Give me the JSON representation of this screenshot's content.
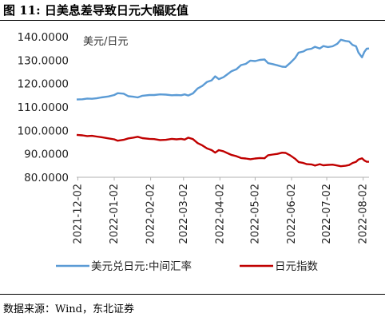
{
  "header": {
    "title": "图  11:  日美息差导致日元大幅贬值"
  },
  "footer": {
    "source": "数据来源：Wind，东北证券"
  },
  "chart_data": {
    "type": "line",
    "unit_label": "美元/日元",
    "ylim": [
      80,
      140
    ],
    "yticks": [
      "140.0000",
      "130.0000",
      "120.0000",
      "110.0000",
      "100.0000",
      "90.0000",
      "80.0000"
    ],
    "ytick_values": [
      140,
      130,
      120,
      110,
      100,
      90,
      80
    ],
    "xticks": [
      "2021-12-02",
      "2022-01-02",
      "2022-02-02",
      "2022-03-02",
      "2022-04-02",
      "2022-05-02",
      "2022-06-02",
      "2022-07-02",
      "2022-08-02"
    ],
    "xlim": [
      "2021-12-01",
      "2022-08-07"
    ],
    "grid": false,
    "legend_position": "bottom",
    "series": [
      {
        "name": "美元兑日元:中间汇率",
        "color": "#5B9BD5",
        "points": [
          [
            "2021-12-01",
            113.2
          ],
          [
            "2021-12-06",
            113.3
          ],
          [
            "2021-12-10",
            113.6
          ],
          [
            "2021-12-14",
            113.5
          ],
          [
            "2021-12-18",
            113.7
          ],
          [
            "2021-12-22",
            114.1
          ],
          [
            "2021-12-28",
            114.5
          ],
          [
            "2022-01-02",
            115.1
          ],
          [
            "2022-01-05",
            115.9
          ],
          [
            "2022-01-10",
            115.7
          ],
          [
            "2022-01-14",
            114.6
          ],
          [
            "2022-01-18",
            114.4
          ],
          [
            "2022-01-22",
            114.1
          ],
          [
            "2022-01-26",
            114.8
          ],
          [
            "2022-02-01",
            115.1
          ],
          [
            "2022-02-05",
            115.1
          ],
          [
            "2022-02-10",
            115.4
          ],
          [
            "2022-02-15",
            115.3
          ],
          [
            "2022-02-20",
            115.0
          ],
          [
            "2022-02-24",
            115.1
          ],
          [
            "2022-02-28",
            115.0
          ],
          [
            "2022-03-03",
            115.4
          ],
          [
            "2022-03-06",
            114.9
          ],
          [
            "2022-03-10",
            115.8
          ],
          [
            "2022-03-14",
            117.9
          ],
          [
            "2022-03-18",
            119.0
          ],
          [
            "2022-03-22",
            120.7
          ],
          [
            "2022-03-26",
            121.4
          ],
          [
            "2022-03-29",
            123.1
          ],
          [
            "2022-04-01",
            121.9
          ],
          [
            "2022-04-05",
            122.7
          ],
          [
            "2022-04-08",
            123.8
          ],
          [
            "2022-04-12",
            125.3
          ],
          [
            "2022-04-16",
            126.1
          ],
          [
            "2022-04-20",
            127.9
          ],
          [
            "2022-04-24",
            128.4
          ],
          [
            "2022-04-28",
            129.8
          ],
          [
            "2022-05-02",
            129.6
          ],
          [
            "2022-05-06",
            130.1
          ],
          [
            "2022-05-10",
            130.3
          ],
          [
            "2022-05-13",
            128.7
          ],
          [
            "2022-05-17",
            128.3
          ],
          [
            "2022-05-21",
            127.8
          ],
          [
            "2022-05-25",
            127.2
          ],
          [
            "2022-05-28",
            127.1
          ],
          [
            "2022-06-01",
            128.9
          ],
          [
            "2022-06-05",
            130.9
          ],
          [
            "2022-06-08",
            133.2
          ],
          [
            "2022-06-12",
            133.7
          ],
          [
            "2022-06-15",
            134.5
          ],
          [
            "2022-06-19",
            134.9
          ],
          [
            "2022-06-22",
            135.7
          ],
          [
            "2022-06-26",
            135.0
          ],
          [
            "2022-06-29",
            136.0
          ],
          [
            "2022-07-03",
            135.6
          ],
          [
            "2022-07-07",
            135.9
          ],
          [
            "2022-07-11",
            137.0
          ],
          [
            "2022-07-14",
            138.7
          ],
          [
            "2022-07-18",
            138.2
          ],
          [
            "2022-07-21",
            138.0
          ],
          [
            "2022-07-24",
            136.5
          ],
          [
            "2022-07-27",
            135.9
          ],
          [
            "2022-07-29",
            133.2
          ],
          [
            "2022-08-01",
            131.2
          ],
          [
            "2022-08-03",
            133.5
          ],
          [
            "2022-08-05",
            134.9
          ],
          [
            "2022-08-07",
            135.0
          ]
        ]
      },
      {
        "name": "日元指数",
        "color": "#C00000",
        "points": [
          [
            "2021-12-01",
            98.1
          ],
          [
            "2021-12-06",
            97.9
          ],
          [
            "2021-12-10",
            97.6
          ],
          [
            "2021-12-14",
            97.7
          ],
          [
            "2021-12-18",
            97.4
          ],
          [
            "2021-12-22",
            97.1
          ],
          [
            "2021-12-28",
            96.6
          ],
          [
            "2022-01-02",
            96.2
          ],
          [
            "2022-01-05",
            95.6
          ],
          [
            "2022-01-10",
            96.0
          ],
          [
            "2022-01-14",
            96.6
          ],
          [
            "2022-01-18",
            96.9
          ],
          [
            "2022-01-22",
            97.3
          ],
          [
            "2022-01-26",
            96.7
          ],
          [
            "2022-02-01",
            96.4
          ],
          [
            "2022-02-05",
            96.3
          ],
          [
            "2022-02-10",
            95.9
          ],
          [
            "2022-02-15",
            96.0
          ],
          [
            "2022-02-20",
            96.4
          ],
          [
            "2022-02-24",
            96.2
          ],
          [
            "2022-02-28",
            96.4
          ],
          [
            "2022-03-03",
            96.1
          ],
          [
            "2022-03-06",
            96.9
          ],
          [
            "2022-03-10",
            96.3
          ],
          [
            "2022-03-14",
            94.6
          ],
          [
            "2022-03-18",
            93.6
          ],
          [
            "2022-03-22",
            92.3
          ],
          [
            "2022-03-26",
            91.6
          ],
          [
            "2022-03-29",
            90.5
          ],
          [
            "2022-04-01",
            91.6
          ],
          [
            "2022-04-05",
            91.1
          ],
          [
            "2022-04-08",
            90.4
          ],
          [
            "2022-04-12",
            89.5
          ],
          [
            "2022-04-16",
            89.0
          ],
          [
            "2022-04-20",
            88.2
          ],
          [
            "2022-04-24",
            88.0
          ],
          [
            "2022-04-28",
            87.7
          ],
          [
            "2022-05-02",
            88.0
          ],
          [
            "2022-05-06",
            88.2
          ],
          [
            "2022-05-10",
            88.1
          ],
          [
            "2022-05-13",
            89.4
          ],
          [
            "2022-05-17",
            89.7
          ],
          [
            "2022-05-21",
            90.0
          ],
          [
            "2022-05-25",
            90.5
          ],
          [
            "2022-05-28",
            90.4
          ],
          [
            "2022-06-01",
            89.3
          ],
          [
            "2022-06-05",
            87.9
          ],
          [
            "2022-06-08",
            86.5
          ],
          [
            "2022-06-12",
            86.1
          ],
          [
            "2022-06-15",
            85.6
          ],
          [
            "2022-06-19",
            85.5
          ],
          [
            "2022-06-22",
            85.0
          ],
          [
            "2022-06-26",
            85.6
          ],
          [
            "2022-06-29",
            85.1
          ],
          [
            "2022-07-03",
            85.3
          ],
          [
            "2022-07-07",
            85.4
          ],
          [
            "2022-07-11",
            85.0
          ],
          [
            "2022-07-14",
            84.7
          ],
          [
            "2022-07-18",
            84.9
          ],
          [
            "2022-07-21",
            85.2
          ],
          [
            "2022-07-24",
            86.1
          ],
          [
            "2022-07-27",
            86.6
          ],
          [
            "2022-07-29",
            87.6
          ],
          [
            "2022-08-01",
            88.1
          ],
          [
            "2022-08-03",
            87.2
          ],
          [
            "2022-08-05",
            86.6
          ],
          [
            "2022-08-07",
            86.6
          ]
        ]
      }
    ]
  }
}
